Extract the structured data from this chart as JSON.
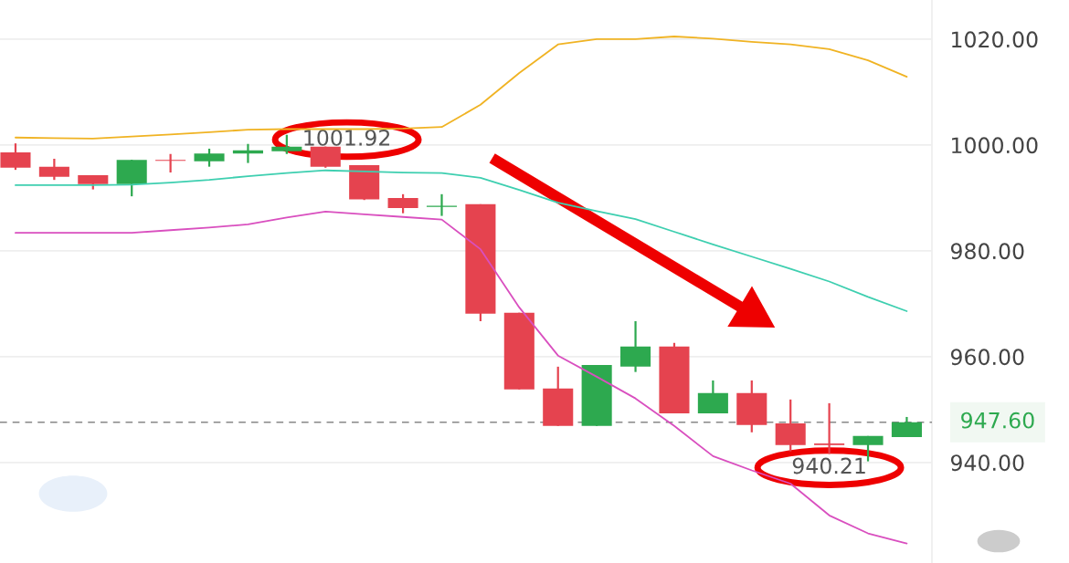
{
  "chart_data": {
    "type": "candlestick",
    "categories": [
      null,
      null,
      null,
      null,
      null,
      null,
      null,
      null,
      null,
      null,
      null,
      null,
      null,
      null,
      null,
      null,
      null,
      null,
      null,
      null,
      null,
      null,
      null,
      null
    ],
    "ohlc": [
      [
        998.6,
        1000.3,
        995.3,
        995.7
      ],
      [
        995.9,
        997.4,
        993.4,
        994.0
      ],
      [
        994.3,
        994.3,
        991.6,
        992.6
      ],
      [
        992.6,
        997.2,
        990.3,
        997.2
      ],
      [
        997.2,
        998.3,
        994.8,
        997.0
      ],
      [
        996.9,
        999.3,
        995.9,
        998.4
      ],
      [
        998.4,
        1000.2,
        996.6,
        999.0
      ],
      [
        998.8,
        1001.92,
        998.3,
        999.7
      ],
      [
        999.7,
        999.7,
        995.7,
        995.9
      ],
      [
        996.2,
        996.2,
        989.6,
        989.7
      ],
      [
        990.0,
        990.7,
        987.1,
        988.1
      ],
      [
        988.3,
        990.7,
        986.6,
        988.5
      ],
      [
        988.8,
        988.8,
        966.7,
        968.1
      ],
      [
        968.3,
        968.3,
        953.8,
        953.8
      ],
      [
        954.0,
        958.1,
        946.9,
        946.9
      ],
      [
        946.9,
        958.4,
        946.9,
        958.4
      ],
      [
        958.1,
        966.7,
        957.1,
        961.9
      ],
      [
        961.9,
        962.6,
        949.3,
        949.3
      ],
      [
        949.3,
        955.5,
        949.3,
        953.1
      ],
      [
        953.1,
        955.5,
        945.7,
        947.1
      ],
      [
        947.4,
        951.9,
        942.1,
        943.3
      ],
      [
        943.6,
        951.2,
        941.6,
        943.3
      ],
      [
        943.3,
        945.0,
        940.21,
        945.0
      ],
      [
        944.8,
        948.6,
        944.8,
        947.6
      ]
    ],
    "colors": [
      "#e5434f",
      "#e5434f",
      "#e5434f",
      "#2da94f",
      "#e5434f",
      "#2da94f",
      "#2da94f",
      "#2da94f",
      "#e5434f",
      "#e5434f",
      "#e5434f",
      "#2da94f",
      "#e5434f",
      "#e5434f",
      "#e5434f",
      "#2da94f",
      "#2da94f",
      "#e5434f",
      "#2da94f",
      "#e5434f",
      "#e5434f",
      "#e5434f",
      "#2da94f",
      "#2da94f"
    ],
    "series": [
      {
        "type": "line",
        "color": "#f0b323",
        "values": [
          1001.4,
          1001.3,
          1001.2,
          1001.6,
          1002.0,
          1002.4,
          1002.9,
          1003.0,
          1003.0,
          1003.0,
          1003.1,
          1003.4,
          1007.6,
          1013.6,
          1019.0,
          1020.0,
          1020.0,
          1020.5,
          1020.1,
          1019.5,
          1019.0,
          1018.1,
          1016.0,
          1012.9
        ]
      },
      {
        "type": "line",
        "color": "#3ecfb0",
        "values": [
          992.4,
          992.4,
          992.4,
          992.5,
          992.9,
          993.4,
          994.1,
          994.7,
          995.2,
          995.0,
          994.8,
          994.7,
          993.8,
          991.5,
          989.1,
          987.5,
          986.0,
          983.6,
          981.2,
          978.9,
          976.6,
          974.2,
          971.3,
          968.6
        ]
      },
      {
        "type": "line",
        "color": "#d94fbf",
        "values": [
          983.4,
          983.4,
          983.4,
          983.4,
          983.9,
          984.4,
          985.0,
          986.3,
          987.4,
          986.9,
          986.4,
          985.9,
          980.3,
          969.3,
          960.2,
          956.2,
          952.1,
          946.9,
          941.2,
          938.5,
          936.0,
          930.0,
          926.6,
          924.7
        ]
      }
    ],
    "ylim": [
      921.0,
      1027.4
    ],
    "yticks": [
      {
        "value": 940,
        "label": "940.00"
      },
      {
        "value": 960,
        "label": "960.00"
      },
      {
        "value": 980,
        "label": "980.00"
      },
      {
        "value": 1000,
        "label": "1000.00"
      },
      {
        "value": 1020,
        "label": "1020.00"
      }
    ],
    "grid": "y",
    "ref_lines": [
      {
        "axis": "y",
        "value": 947.6,
        "label": "947.60",
        "color": "#888888",
        "line_style": "dashed"
      }
    ],
    "annotations": [
      "1001.92",
      "940.21"
    ]
  }
}
